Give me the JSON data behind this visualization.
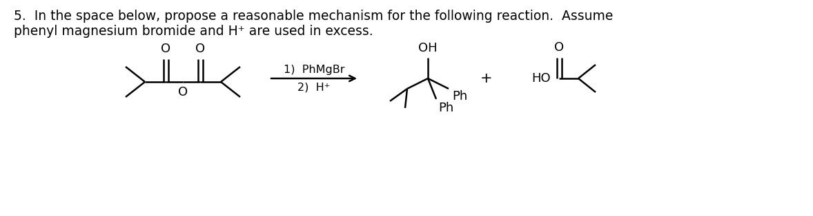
{
  "title_line1": "5.  In the space below, propose a reasonable mechanism for the following reaction.  Assume",
  "title_line2": "phenyl magnesium bromide and H⁺ are used in excess.",
  "reagent_line1": "1)  PhMgBr",
  "reagent_line2": "2)  H⁺",
  "plus_sign": "+",
  "label_OH": "OH",
  "label_Ph1": "Ph",
  "label_Ph2": "Ph",
  "label_HO": "HO",
  "label_O1": "O",
  "label_O2": "O",
  "label_O3": "O",
  "bg_color": "#ffffff",
  "text_color": "#000000",
  "line_color": "#000000",
  "font_size_title": 13.5,
  "font_size_chem": 13,
  "fig_width": 11.78,
  "fig_height": 3.14
}
